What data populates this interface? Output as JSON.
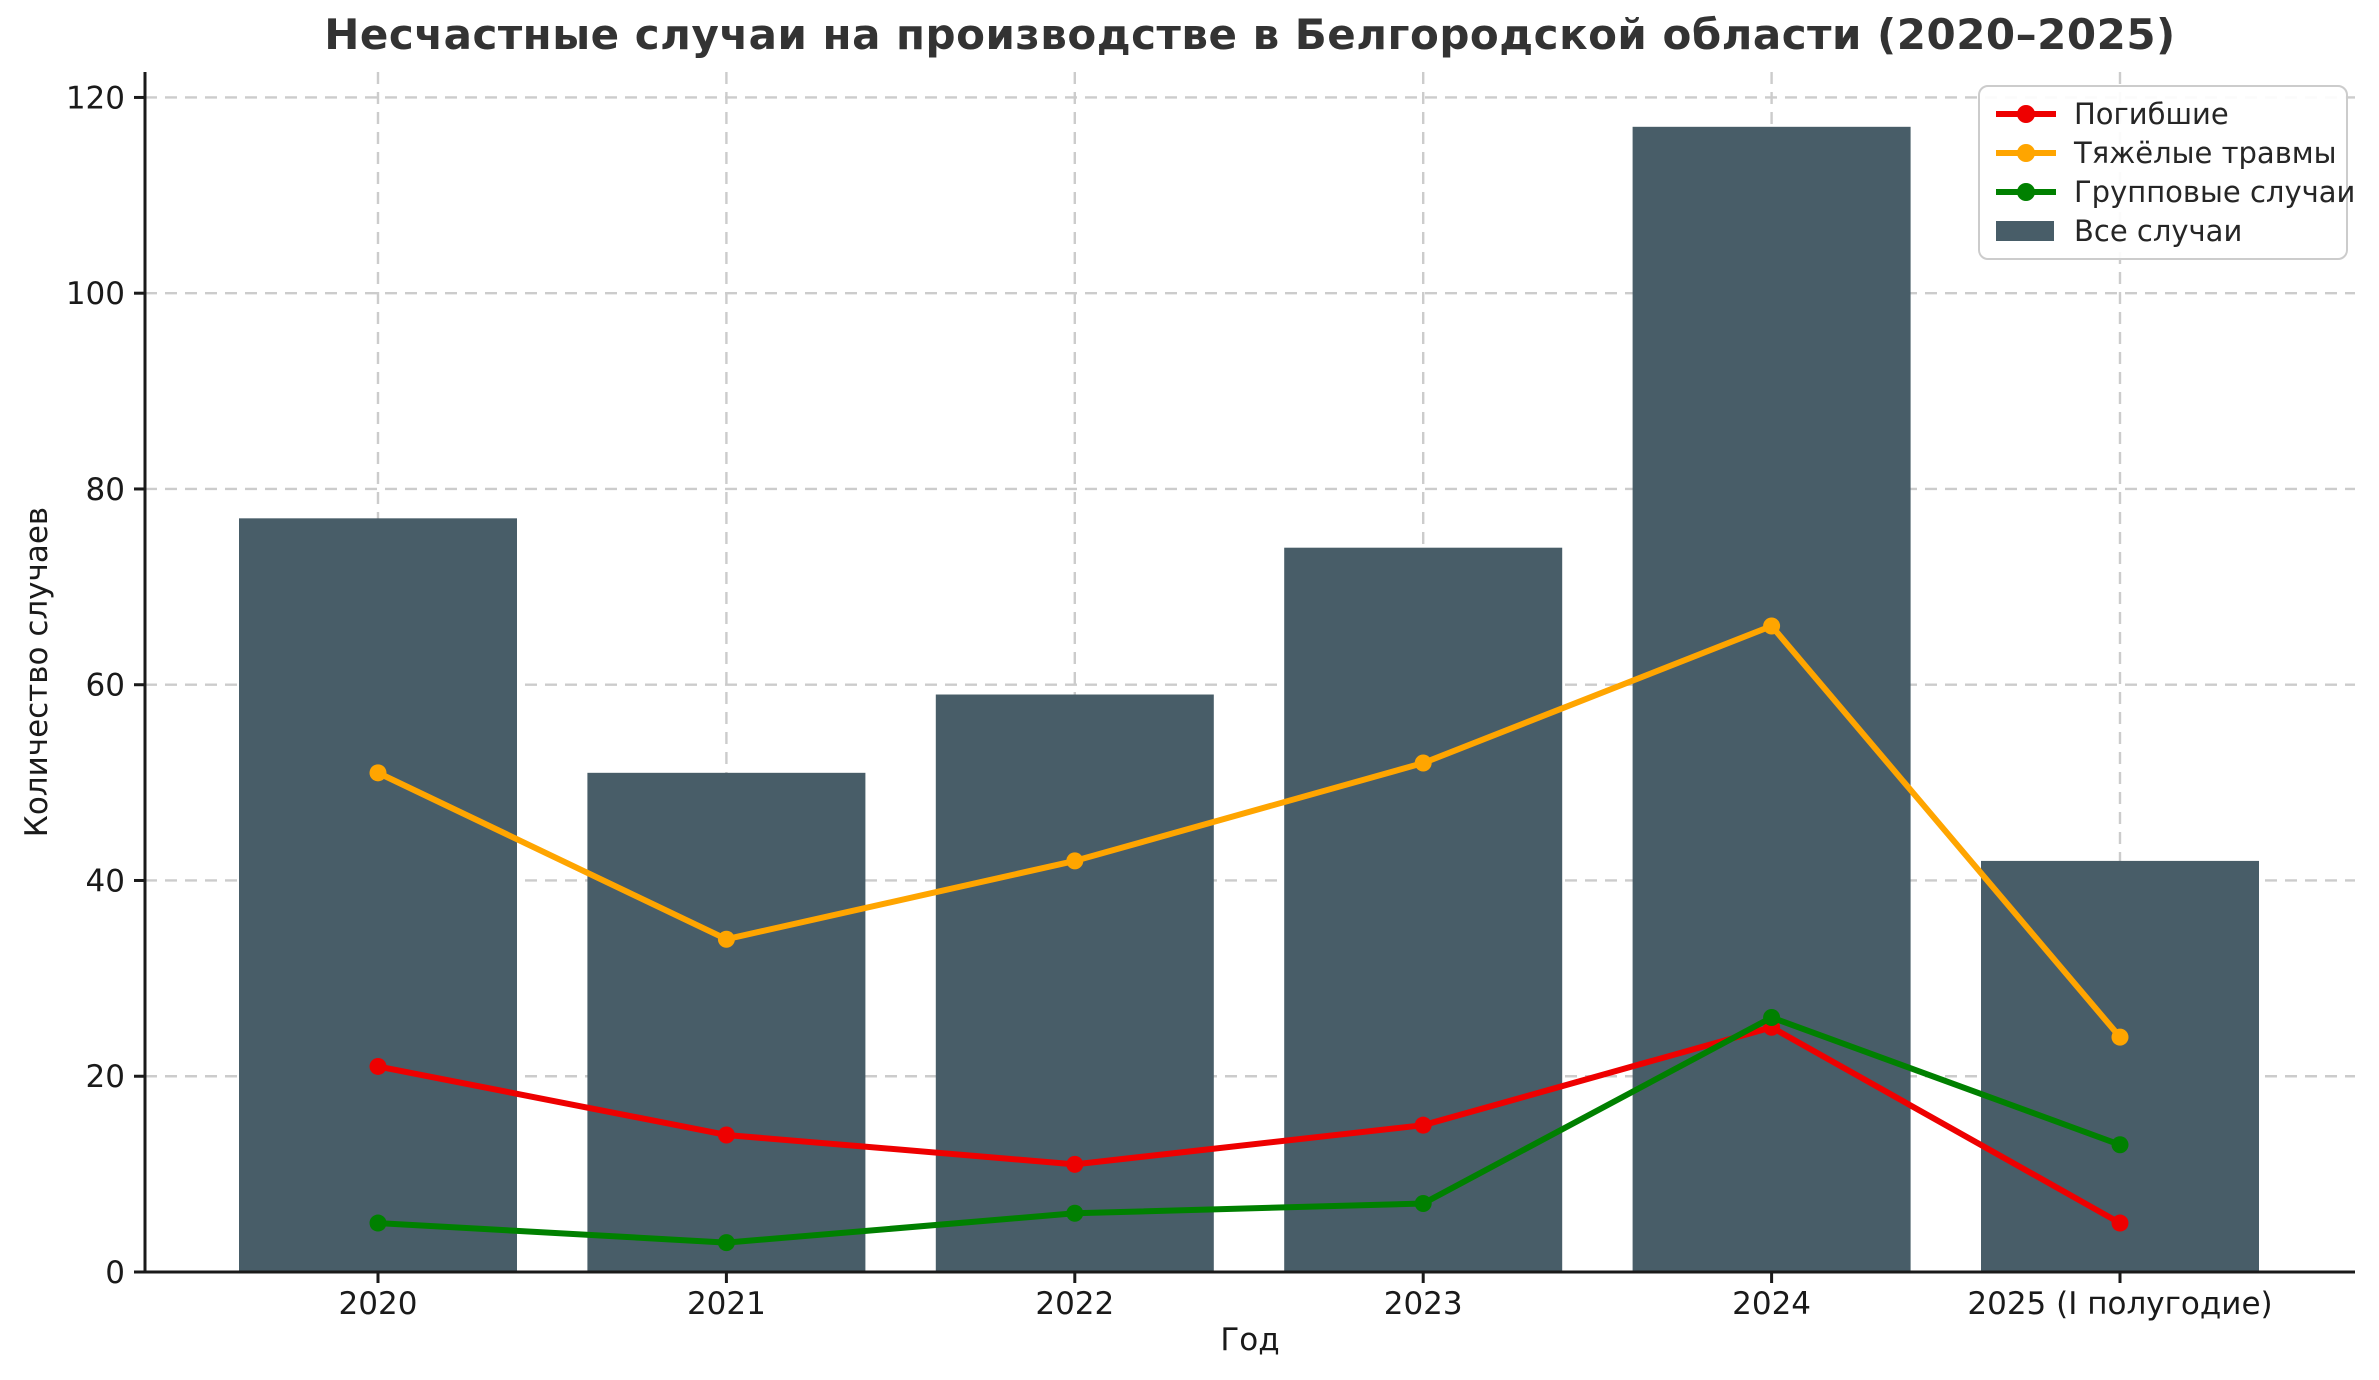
{
  "title": "Несчастные случаи на производстве в Белгородской области (2020–2025)",
  "chart_data": {
    "type": "bar+line",
    "title": "Несчастные случаи на производстве в Белгородской области (2020–2025)",
    "xlabel": "Год",
    "ylabel": "Количество случаев",
    "categories": [
      "2020",
      "2021",
      "2022",
      "2023",
      "2024",
      "2025 (I полугодие)"
    ],
    "yticks": [
      0,
      20,
      40,
      60,
      80,
      100,
      120
    ],
    "ylim": [
      0,
      122.6
    ],
    "grid": true,
    "grid_color": "#cccccc",
    "axis_color": "#1a1a1a",
    "legend_position": "upper right",
    "series": [
      {
        "name": "Погибшие",
        "kind": "line",
        "color": "#ee0000",
        "values": [
          21,
          14,
          11,
          15,
          25,
          5
        ]
      },
      {
        "name": "Тяжёлые травмы",
        "kind": "line",
        "color": "#ffa500",
        "values": [
          51,
          34,
          42,
          52,
          66,
          24
        ]
      },
      {
        "name": "Групповые случаи",
        "kind": "line",
        "color": "#008000",
        "values": [
          5,
          3,
          6,
          7,
          26,
          13
        ]
      },
      {
        "name": "Все случаи",
        "kind": "bar",
        "color": "#485d68",
        "values": [
          77,
          51,
          59,
          74,
          117,
          42
        ]
      }
    ]
  }
}
